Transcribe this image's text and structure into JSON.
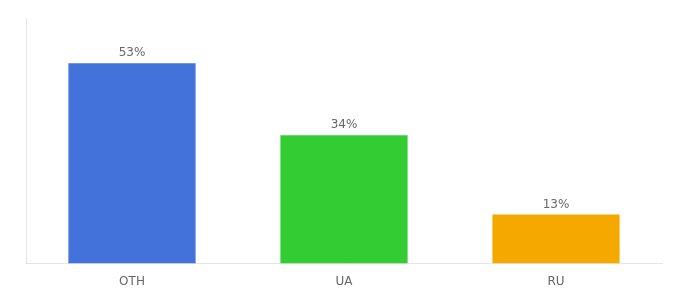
{
  "chart_data": {
    "type": "bar",
    "categories": [
      "OTH",
      "UA",
      "RU"
    ],
    "values": [
      53,
      34,
      13
    ],
    "colors": [
      "#4472db",
      "#33cc33",
      "#f5a800"
    ],
    "value_labels": [
      "53%",
      "34%",
      "13%"
    ],
    "data_labels": true,
    "ylim": [
      0,
      65
    ],
    "tick_labels": "x",
    "grid": false
  }
}
